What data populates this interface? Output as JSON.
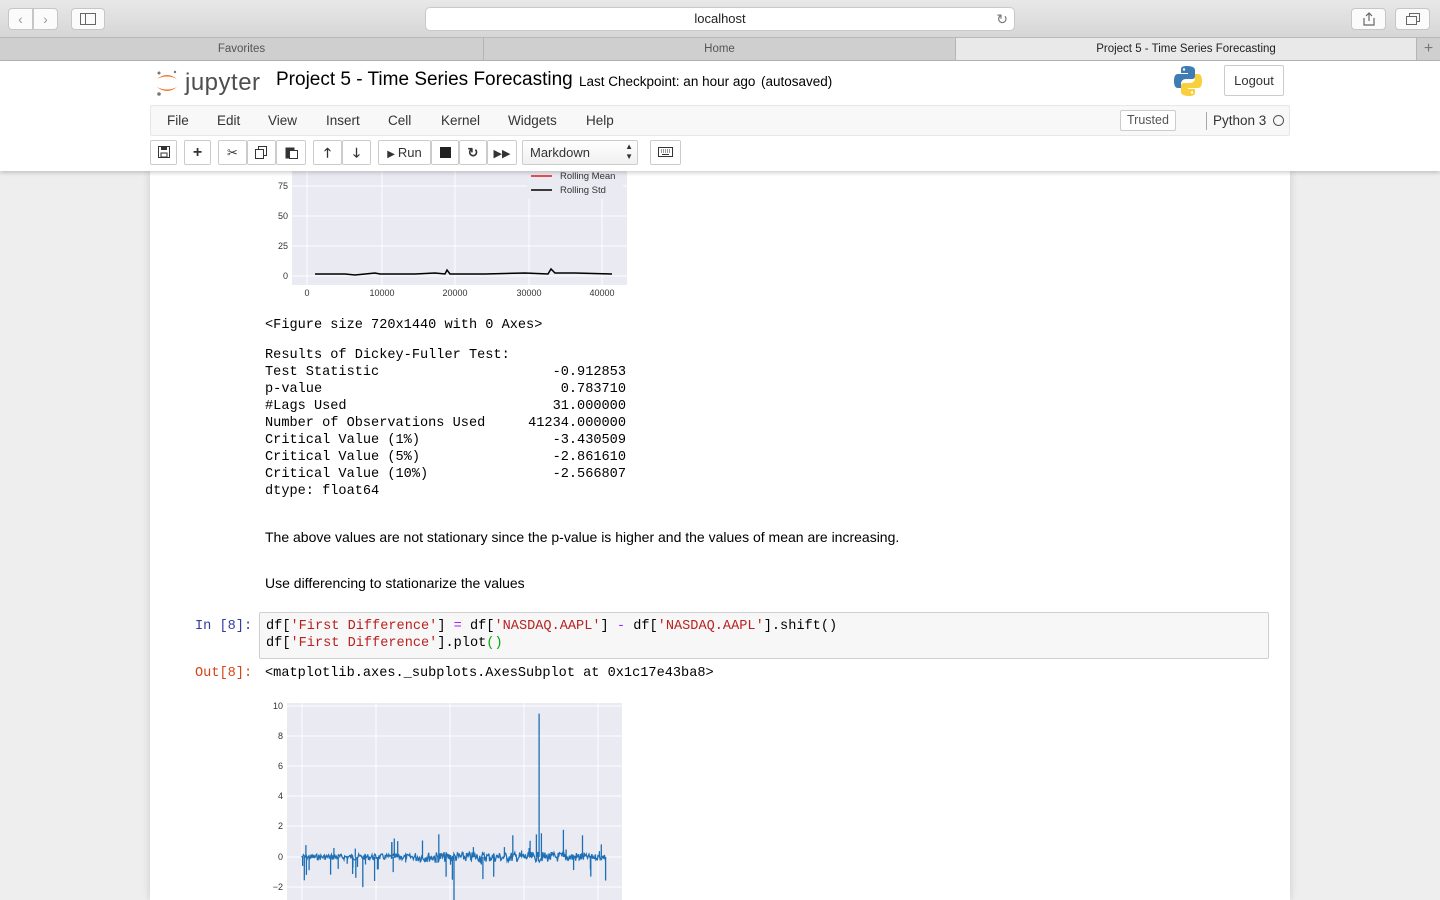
{
  "browser": {
    "url": "localhost",
    "tabs": [
      {
        "label": "Favorites"
      },
      {
        "label": "Home"
      },
      {
        "label": "Project 5 - Time Series Forecasting"
      }
    ]
  },
  "header": {
    "logo_text": "jupyter",
    "notebook_title": "Project 5 - Time Series Forecasting",
    "checkpoint": "Last Checkpoint: an hour ago",
    "autosave": "(autosaved)",
    "logout_label": "Logout"
  },
  "menubar": {
    "items": [
      "File",
      "Edit",
      "View",
      "Insert",
      "Cell",
      "Kernel",
      "Widgets",
      "Help"
    ],
    "trusted_label": "Trusted",
    "kernel_name": "Python 3"
  },
  "toolbar": {
    "run_label": "Run",
    "cell_type": "Markdown"
  },
  "cells": {
    "rolling_plot": {
      "legend": [
        "Rolling Mean",
        "Rolling Std"
      ],
      "y_ticks": [
        "75",
        "50",
        "25",
        "0"
      ],
      "x_ticks": [
        "0",
        "10000",
        "20000",
        "30000",
        "40000"
      ]
    },
    "figure_size": "<Figure size 720x1440 with 0 Axes>",
    "dickey_fuller": {
      "heading": "Results of Dickey-Fuller Test:",
      "rows": [
        {
          "label": "Test Statistic",
          "value": "-0.912853"
        },
        {
          "label": "p-value",
          "value": "0.783710"
        },
        {
          "label": "#Lags Used",
          "value": "31.000000"
        },
        {
          "label": "Number of Observations Used",
          "value": "41234.000000"
        },
        {
          "label": "Critical Value (1%)",
          "value": "-3.430509"
        },
        {
          "label": "Critical Value (5%)",
          "value": "-2.861610"
        },
        {
          "label": "Critical Value (10%)",
          "value": "-2.566807"
        }
      ],
      "dtype": "dtype: float64"
    },
    "markdown_1": "The above values are not stationary since the p-value is higher and the values of mean are increasing.",
    "markdown_2": "Use differencing to stationarize the values",
    "in_prompt": "In [8]:",
    "out_prompt": "Out[8]:",
    "code": {
      "line1": [
        "df[",
        "'First Difference'",
        "] ",
        "=",
        " df[",
        "'NASDAQ.AAPL'",
        "] ",
        "-",
        " df[",
        "'NASDAQ.AAPL'",
        "].shift()"
      ],
      "line2": [
        "df[",
        "'First Difference'",
        "].plot",
        "()"
      ]
    },
    "output_text": "<matplotlib.axes._subplots.AxesSubplot at 0x1c17e43ba8>",
    "diff_plot": {
      "y_ticks": [
        "10",
        "8",
        "6",
        "4",
        "2",
        "0",
        "−2"
      ]
    }
  },
  "chart_data": [
    {
      "type": "line",
      "series": [
        {
          "name": "Rolling Mean",
          "color": "#e41a1c"
        },
        {
          "name": "Rolling Std",
          "color": "#000000"
        }
      ],
      "y_ticks": [
        0,
        25,
        50,
        75
      ],
      "x_ticks": [
        0,
        10000,
        20000,
        30000,
        40000
      ],
      "rolling_std_approx": {
        "x": [
          0,
          10000,
          19000,
          20000,
          30000,
          33000,
          41000
        ],
        "y": [
          1,
          1,
          1,
          5,
          1,
          5,
          1
        ]
      }
    },
    {
      "type": "line",
      "series": [
        {
          "name": "",
          "color": "#1f6fb4"
        }
      ],
      "y_ticks": [
        -2,
        0,
        2,
        4,
        6,
        8,
        10
      ],
      "ylim": [
        -3,
        10
      ],
      "spikes": {
        "x_fraction": [
          0.2,
          0.3,
          0.45,
          0.5,
          0.78,
          0.86,
          0.95
        ],
        "y": [
          -2,
          -1,
          1.5,
          -3,
          9.5,
          1.8,
          -1.3
        ]
      }
    }
  ]
}
